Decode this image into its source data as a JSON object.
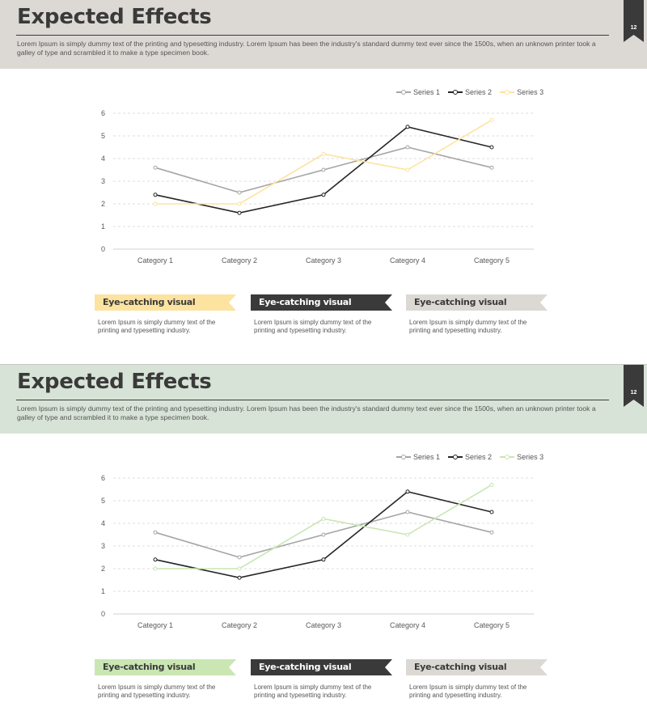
{
  "slides": [
    {
      "title": "Expected Effects",
      "subtitle": "Lorem Ipsum is simply dummy text of the printing and typesetting industry. Lorem Ipsum has been the industry's standard dummy text ever since the 1500s, when an unknown printer took a galley of type and scrambled it to make a type specimen book.",
      "page_number": "12",
      "colors": {
        "header_bg": "#dcd9d4",
        "series3": "#fce3a0",
        "banner1": "#fce3a0"
      },
      "callouts": [
        {
          "label": "Eye-catching visual",
          "text": "Lorem Ipsum is simply dummy text of the printing and typesetting industry."
        },
        {
          "label": "Eye-catching visual",
          "text": "Lorem Ipsum is simply dummy text of the printing and typesetting industry."
        },
        {
          "label": "Eye-catching visual",
          "text": "Lorem Ipsum is simply dummy text of the printing and typesetting industry."
        }
      ]
    },
    {
      "title": "Expected Effects",
      "subtitle": "Lorem Ipsum is simply dummy text of the printing and typesetting industry. Lorem Ipsum has been the industry's standard dummy text ever since the 1500s, when an unknown printer took a galley of type and scrambled it to make a type specimen book.",
      "page_number": "12",
      "colors": {
        "header_bg": "#d7e3d7",
        "series3": "#c9e6b3",
        "banner1": "#c9e6b3"
      },
      "callouts": [
        {
          "label": "Eye-catching visual",
          "text": "Lorem Ipsum is simply dummy text of the printing and typesetting industry."
        },
        {
          "label": "Eye-catching visual",
          "text": "Lorem Ipsum is simply dummy text of the printing and typesetting industry."
        },
        {
          "label": "Eye-catching visual",
          "text": "Lorem Ipsum is simply dummy text of the printing and typesetting industry."
        }
      ]
    }
  ],
  "common_colors": {
    "series1": "#a6a6a6",
    "series2": "#262626",
    "banner2": "#3a3a3a",
    "banner3": "#dcd9d4",
    "text_dark": "#3a3a3a"
  },
  "chart_data": [
    {
      "type": "line",
      "categories": [
        "Category 1",
        "Category 2",
        "Category 3",
        "Category 4",
        "Category 5"
      ],
      "series": [
        {
          "name": "Series 1",
          "values": [
            3.6,
            2.5,
            3.5,
            4.5,
            3.6
          ]
        },
        {
          "name": "Series 2",
          "values": [
            2.4,
            1.6,
            2.4,
            5.4,
            4.5
          ]
        },
        {
          "name": "Series 3",
          "values": [
            2.0,
            2.0,
            4.2,
            3.5,
            5.7
          ]
        }
      ],
      "ylim": [
        0,
        6
      ],
      "yticks": [
        "0",
        "1",
        "2",
        "3",
        "4",
        "5",
        "6"
      ],
      "legend_position": "top-right",
      "grid": true
    },
    {
      "type": "line",
      "categories": [
        "Category 1",
        "Category 2",
        "Category 3",
        "Category 4",
        "Category 5"
      ],
      "series": [
        {
          "name": "Series 1",
          "values": [
            3.6,
            2.5,
            3.5,
            4.5,
            3.6
          ]
        },
        {
          "name": "Series 2",
          "values": [
            2.4,
            1.6,
            2.4,
            5.4,
            4.5
          ]
        },
        {
          "name": "Series 3",
          "values": [
            2.0,
            2.0,
            4.2,
            3.5,
            5.7
          ]
        }
      ],
      "ylim": [
        0,
        6
      ],
      "yticks": [
        "0",
        "1",
        "2",
        "3",
        "4",
        "5",
        "6"
      ],
      "legend_position": "top-right",
      "grid": true
    }
  ]
}
